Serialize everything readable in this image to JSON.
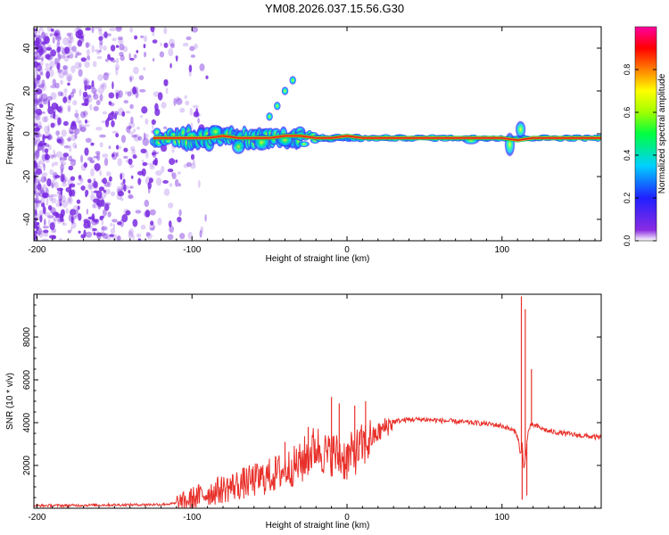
{
  "title": "YM08.2026.037.15.56.G30",
  "colors": {
    "line": "#e8302a",
    "ridge": "#e02020",
    "scatter": "#7a2ce0",
    "text": "#000000"
  },
  "chart_data": [
    {
      "type": "heatmap",
      "name": "spectrogram",
      "xlabel": "Height of straight line (km)",
      "ylabel": "Frequency (Hz)",
      "xlim": [
        -202,
        164
      ],
      "ylim": [
        -50,
        50
      ],
      "xticks": [
        -200,
        -100,
        0,
        100
      ],
      "xtick_labels": [
        "-200",
        "-100",
        "0",
        "100"
      ],
      "yticks": [
        -40,
        -20,
        0,
        20,
        40
      ],
      "ytick_labels": [
        "-40",
        "-20",
        "0",
        "20",
        "40"
      ],
      "colorbar": {
        "label": "Normalized spectral amplitude",
        "range": [
          0,
          1
        ],
        "ticks": [
          0,
          0.2,
          0.4,
          0.6,
          0.8
        ],
        "tick_labels": [
          "0.0",
          "0.2",
          "0.4",
          "0.6",
          "0.8"
        ]
      },
      "ridge": {
        "x": [
          -125,
          -110,
          -100,
          -90,
          -80,
          -70,
          -60,
          -50,
          -40,
          -30,
          -20,
          -10,
          0,
          10,
          20,
          40,
          60,
          80,
          100,
          110,
          120,
          140,
          164
        ],
        "y": [
          -2,
          -2,
          -2,
          -2,
          -1,
          -2,
          -2,
          -2,
          -1,
          -1,
          -2,
          -2,
          -1,
          -2,
          -2,
          -2,
          -2,
          -2,
          -2,
          -3,
          -2,
          -2,
          -2
        ]
      },
      "noise_region_x": [
        -202,
        -115
      ],
      "branch": {
        "x": [
          -50,
          -45,
          -40,
          -35
        ],
        "y": [
          8,
          13,
          20,
          25
        ]
      }
    },
    {
      "type": "line",
      "name": "snr",
      "xlabel": "Height of straight line (km)",
      "ylabel": "SNR (10 * v/v)",
      "xlim": [
        -202,
        164
      ],
      "ylim": [
        0,
        10000
      ],
      "xticks": [
        -200,
        -100,
        0,
        100
      ],
      "xtick_labels": [
        "-200",
        "-100",
        "0",
        "100"
      ],
      "yticks": [
        2000,
        4000,
        6000,
        8000
      ],
      "ytick_labels": [
        "2000",
        "4000",
        "6000",
        "8000"
      ],
      "series": [
        {
          "name": "SNR",
          "x": [
            -202,
            -180,
            -160,
            -140,
            -120,
            -105,
            -100,
            -90,
            -80,
            -70,
            -60,
            -50,
            -40,
            -30,
            -25,
            -20,
            -15,
            -12,
            -10,
            -5,
            0,
            5,
            10,
            15,
            20,
            25,
            30,
            40,
            50,
            60,
            70,
            80,
            90,
            95,
            100,
            105,
            108,
            110,
            112,
            113,
            114,
            115,
            116,
            117,
            118,
            120,
            125,
            130,
            140,
            150,
            164
          ],
          "y": [
            120,
            130,
            150,
            160,
            180,
            250,
            450,
            700,
            900,
            1100,
            1300,
            1500,
            1800,
            2100,
            2500,
            2900,
            2600,
            2400,
            2600,
            2400,
            2300,
            2600,
            2900,
            3200,
            3500,
            3800,
            4050,
            4150,
            4150,
            4100,
            4050,
            4000,
            3950,
            3900,
            3850,
            3700,
            3600,
            3400,
            2500,
            3000,
            1800,
            2300,
            3000,
            3600,
            3800,
            3900,
            3750,
            3600,
            3500,
            3400,
            3300
          ]
        }
      ],
      "spikes": [
        {
          "x": 112.5,
          "y": 9900
        },
        {
          "x": 113,
          "y": 400
        },
        {
          "x": 115,
          "y": 9300
        },
        {
          "x": 116,
          "y": 600
        },
        {
          "x": 119,
          "y": 6500
        },
        {
          "x": -10,
          "y": 5200
        },
        {
          "x": -5,
          "y": 4900
        },
        {
          "x": 5,
          "y": 4800
        },
        {
          "x": 12,
          "y": 5000
        },
        {
          "x": -25,
          "y": 3800
        },
        {
          "x": -40,
          "y": 3100
        }
      ]
    }
  ]
}
